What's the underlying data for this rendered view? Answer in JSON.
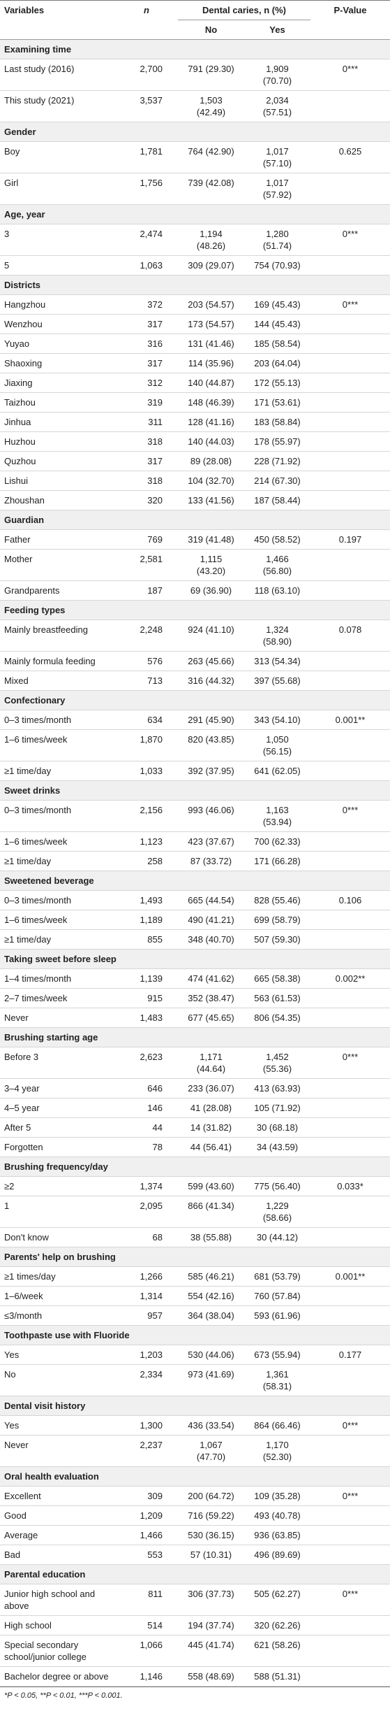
{
  "header": {
    "variables": "Variables",
    "n": "n",
    "group": "Dental caries, n (%)",
    "no": "No",
    "yes": "Yes",
    "p": "P-Value"
  },
  "sections": [
    {
      "title": "Examining time",
      "p": "0***",
      "rows": [
        [
          "Last study (2016)",
          "2,700",
          "791 (29.30)",
          "1,909 (70.70)"
        ],
        [
          "This study (2021)",
          "3,537",
          "1,503 (42.49)",
          "2,034 (57.51)"
        ]
      ]
    },
    {
      "title": "Gender",
      "p": "0.625",
      "rows": [
        [
          "Boy",
          "1,781",
          "764 (42.90)",
          "1,017 (57.10)"
        ],
        [
          "Girl",
          "1,756",
          "739 (42.08)",
          "1,017 (57.92)"
        ]
      ]
    },
    {
      "title": "Age, year",
      "p": "0***",
      "rows": [
        [
          "3",
          "2,474",
          "1,194 (48.26)",
          "1,280 (51.74)"
        ],
        [
          "5",
          "1,063",
          "309 (29.07)",
          "754 (70.93)"
        ]
      ]
    },
    {
      "title": "Districts",
      "p": "0***",
      "rows": [
        [
          "Hangzhou",
          "372",
          "203 (54.57)",
          "169 (45.43)"
        ],
        [
          "Wenzhou",
          "317",
          "173 (54.57)",
          "144 (45.43)"
        ],
        [
          "Yuyao",
          "316",
          "131 (41.46)",
          "185 (58.54)"
        ],
        [
          "Shaoxing",
          "317",
          "114 (35.96)",
          "203 (64.04)"
        ],
        [
          "Jiaxing",
          "312",
          "140 (44.87)",
          "172 (55.13)"
        ],
        [
          "Taizhou",
          "319",
          "148 (46.39)",
          "171 (53.61)"
        ],
        [
          "Jinhua",
          "311",
          "128 (41.16)",
          "183 (58.84)"
        ],
        [
          "Huzhou",
          "318",
          "140 (44.03)",
          "178 (55.97)"
        ],
        [
          "Quzhou",
          "317",
          "89 (28.08)",
          "228 (71.92)"
        ],
        [
          "Lishui",
          "318",
          "104 (32.70)",
          "214 (67.30)"
        ],
        [
          "Zhoushan",
          "320",
          "133 (41.56)",
          "187 (58.44)"
        ]
      ]
    },
    {
      "title": "Guardian",
      "p": "0.197",
      "rows": [
        [
          "Father",
          "769",
          "319 (41.48)",
          "450 (58.52)"
        ],
        [
          "Mother",
          "2,581",
          "1,115 (43.20)",
          "1,466 (56.80)"
        ],
        [
          "Grandparents",
          "187",
          "69 (36.90)",
          "118 (63.10)"
        ]
      ]
    },
    {
      "title": "Feeding types",
      "p": "0.078",
      "rows": [
        [
          "Mainly breastfeeding",
          "2,248",
          "924 (41.10)",
          "1,324 (58.90)"
        ],
        [
          "Mainly formula feeding",
          "576",
          "263 (45.66)",
          "313 (54.34)"
        ],
        [
          "Mixed",
          "713",
          "316 (44.32)",
          "397 (55.68)"
        ]
      ]
    },
    {
      "title": "Confectionary",
      "p": "0.001**",
      "rows": [
        [
          "0–3 times/month",
          "634",
          "291 (45.90)",
          "343 (54.10)"
        ],
        [
          "1–6 times/week",
          "1,870",
          "820 (43.85)",
          "1,050 (56.15)"
        ],
        [
          "≥1 time/day",
          "1,033",
          "392 (37.95)",
          "641 (62.05)"
        ]
      ]
    },
    {
      "title": "Sweet drinks",
      "p": "0***",
      "rows": [
        [
          "0–3 times/month",
          "2,156",
          "993 (46.06)",
          "1,163 (53.94)"
        ],
        [
          "1–6 times/week",
          "1,123",
          "423 (37.67)",
          "700 (62.33)"
        ],
        [
          "≥1 time/day",
          "258",
          "87 (33.72)",
          "171 (66.28)"
        ]
      ]
    },
    {
      "title": "Sweetened beverage",
      "p": "0.106",
      "rows": [
        [
          "0–3 times/month",
          "1,493",
          "665 (44.54)",
          "828 (55.46)"
        ],
        [
          "1–6 times/week",
          "1,189",
          "490 (41.21)",
          "699 (58.79)"
        ],
        [
          "≥1 time/day",
          "855",
          "348 (40.70)",
          "507 (59.30)"
        ]
      ]
    },
    {
      "title": "Taking sweet before sleep",
      "p": "0.002**",
      "rows": [
        [
          "1–4 times/month",
          "1,139",
          "474 (41.62)",
          "665 (58.38)"
        ],
        [
          "2–7 times/week",
          "915",
          "352 (38.47)",
          "563 (61.53)"
        ],
        [
          "Never",
          "1,483",
          "677 (45.65)",
          "806 (54.35)"
        ]
      ]
    },
    {
      "title": "Brushing starting age",
      "p": "0***",
      "rows": [
        [
          "Before 3",
          "2,623",
          "1,171 (44.64)",
          "1,452 (55.36)"
        ],
        [
          "3–4 year",
          "646",
          "233 (36.07)",
          "413 (63.93)"
        ],
        [
          "4–5 year",
          "146",
          "41 (28.08)",
          "105 (71.92)"
        ],
        [
          "After 5",
          "44",
          "14 (31.82)",
          "30 (68.18)"
        ],
        [
          "Forgotten",
          "78",
          "44 (56.41)",
          "34 (43.59)"
        ]
      ]
    },
    {
      "title": "Brushing frequency/day",
      "p": "0.033*",
      "rows": [
        [
          "≥2",
          "1,374",
          "599 (43.60)",
          "775 (56.40)"
        ],
        [
          "1",
          "2,095",
          "866 (41.34)",
          "1,229 (58.66)"
        ],
        [
          "Don't know",
          "68",
          "38 (55.88)",
          "30 (44.12)"
        ]
      ]
    },
    {
      "title": "Parents' help on brushing",
      "p": "0.001**",
      "rows": [
        [
          "≥1 times/day",
          "1,266",
          "585 (46.21)",
          "681 (53.79)"
        ],
        [
          "1–6/week",
          "1,314",
          "554 (42.16)",
          "760 (57.84)"
        ],
        [
          "≤3/month",
          "957",
          "364 (38.04)",
          "593 (61.96)"
        ]
      ]
    },
    {
      "title": "Toothpaste use with Fluoride",
      "p": "0.177",
      "rows": [
        [
          "Yes",
          "1,203",
          "530 (44.06)",
          "673 (55.94)"
        ],
        [
          "No",
          "2,334",
          "973 (41.69)",
          "1,361 (58.31)"
        ]
      ]
    },
    {
      "title": "Dental visit history",
      "p": "0***",
      "rows": [
        [
          "Yes",
          "1,300",
          "436 (33.54)",
          "864 (66.46)"
        ],
        [
          "Never",
          "2,237",
          "1,067 (47.70)",
          "1,170 (52.30)"
        ]
      ]
    },
    {
      "title": "Oral health evaluation",
      "p": "0***",
      "rows": [
        [
          "Excellent",
          "309",
          "200 (64.72)",
          "109 (35.28)"
        ],
        [
          "Good",
          "1,209",
          "716 (59.22)",
          "493 (40.78)"
        ],
        [
          "Average",
          "1,466",
          "530 (36.15)",
          "936 (63.85)"
        ],
        [
          "Bad",
          "553",
          "57 (10.31)",
          "496 (89.69)"
        ]
      ]
    },
    {
      "title": "Parental education",
      "p": "0***",
      "rows": [
        [
          "Junior high school and above",
          "811",
          "306 (37.73)",
          "505 (62.27)"
        ],
        [
          "High school",
          "514",
          "194 (37.74)",
          "320 (62.26)"
        ],
        [
          "Special secondary school/junior college",
          "1,066",
          "445 (41.74)",
          "621 (58.26)"
        ],
        [
          "Bachelor degree or above",
          "1,146",
          "558 (48.69)",
          "588 (51.31)"
        ]
      ]
    }
  ],
  "footnote": "*P < 0.05, **P < 0.01, ***P < 0.001."
}
